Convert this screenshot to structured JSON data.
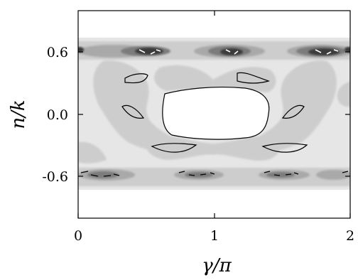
{
  "chart_data": {
    "type": "heatmap",
    "xlabel": "γ/π",
    "ylabel": "n/k",
    "xlim": [
      0,
      2
    ],
    "ylim": [
      -1.0,
      1.0
    ],
    "x_ticks": [
      {
        "value": 0,
        "label": "0"
      },
      {
        "value": 1,
        "label": "1"
      },
      {
        "value": 2,
        "label": "2"
      }
    ],
    "y_ticks": [
      {
        "value": 0.6,
        "label": "0.6"
      },
      {
        "value": 0.0,
        "label": "0.0"
      },
      {
        "value": -0.6,
        "label": "-0.6"
      }
    ],
    "grid": false,
    "legend": "none",
    "band_extent": [
      -0.72,
      0.72
    ],
    "colors": {
      "level1": "#e6e6e6",
      "level2": "#cdcdcd",
      "level3": "#a9a9a9",
      "level4": "#7c7c7c",
      "level5": "#3a3a3a",
      "outline": "#000000"
    },
    "dark_spots_y": [
      0.6,
      -0.6
    ],
    "dark_spots_x": [
      0.2,
      0.55,
      1.15,
      1.55,
      1.8
    ]
  }
}
